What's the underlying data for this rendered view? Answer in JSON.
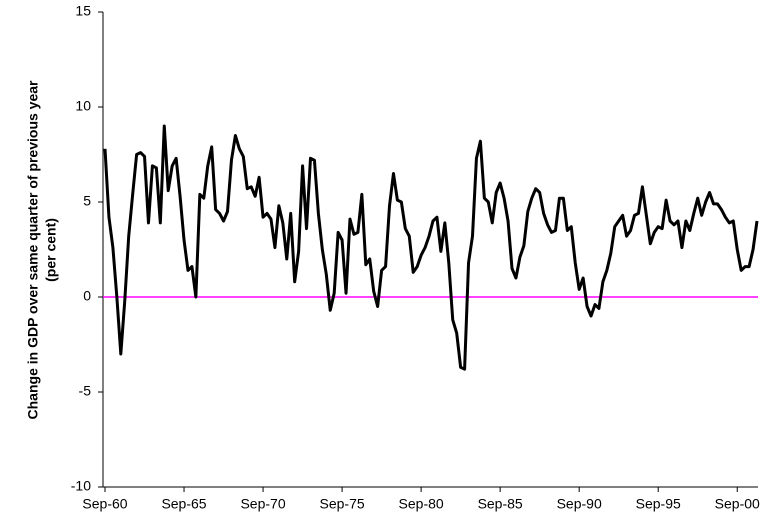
{
  "chart_data": {
    "type": "line",
    "y_label": [
      "Change in GDP over same quarter of previous year",
      "(per cent)"
    ],
    "categories": [
      "Sep-60",
      null,
      null,
      null,
      null,
      null,
      null,
      null,
      null,
      null,
      null,
      null,
      null,
      null,
      null,
      null,
      null,
      null,
      null,
      null,
      "Sep-65",
      null,
      null,
      null,
      null,
      null,
      null,
      null,
      null,
      null,
      null,
      null,
      null,
      null,
      null,
      null,
      null,
      null,
      null,
      null,
      "Sep-70",
      null,
      null,
      null,
      null,
      null,
      null,
      null,
      null,
      null,
      null,
      null,
      null,
      null,
      null,
      null,
      null,
      null,
      null,
      null,
      "Sep-75",
      null,
      null,
      null,
      null,
      null,
      null,
      null,
      null,
      null,
      null,
      null,
      null,
      null,
      null,
      null,
      null,
      null,
      null,
      null,
      "Sep-80",
      null,
      null,
      null,
      null,
      null,
      null,
      null,
      null,
      null,
      null,
      null,
      null,
      null,
      null,
      null,
      null,
      null,
      null,
      null,
      "Sep-85",
      null,
      null,
      null,
      null,
      null,
      null,
      null,
      null,
      null,
      null,
      null,
      null,
      null,
      null,
      null,
      null,
      null,
      null,
      null,
      "Sep-90",
      null,
      null,
      null,
      null,
      null,
      null,
      null,
      null,
      null,
      null,
      null,
      null,
      null,
      null,
      null,
      null,
      null,
      null,
      null,
      "Sep-95",
      null,
      null,
      null,
      null,
      null,
      null,
      null,
      null,
      null,
      null,
      null,
      null,
      null,
      null,
      null,
      null,
      null,
      null,
      null,
      "Sep-00",
      null,
      null,
      null,
      null,
      null
    ],
    "series": [
      {
        "color": "#000000",
        "values": [
          7.8,
          4.2,
          2.6,
          0.0,
          -3.0,
          -0.2,
          3.2,
          5.4,
          7.5,
          7.6,
          7.4,
          3.9,
          6.9,
          6.8,
          3.9,
          9.0,
          5.6,
          6.9,
          7.3,
          5.3,
          3.0,
          1.4,
          1.6,
          0.0,
          5.4,
          5.2,
          6.9,
          7.9,
          4.6,
          4.4,
          4.0,
          4.5,
          7.2,
          8.5,
          7.8,
          7.4,
          5.7,
          5.8,
          5.3,
          6.3,
          4.2,
          4.4,
          4.1,
          2.6,
          4.8,
          3.9,
          2.0,
          4.4,
          0.8,
          2.4,
          6.9,
          3.6,
          7.3,
          7.2,
          4.4,
          2.5,
          1.2,
          -0.7,
          0.2,
          3.4,
          3.0,
          0.2,
          4.1,
          3.3,
          3.4,
          5.4,
          1.7,
          2.0,
          0.3,
          -0.5,
          1.4,
          1.6,
          4.8,
          6.5,
          5.1,
          5.0,
          3.6,
          3.2,
          1.3,
          1.6,
          2.2,
          2.6,
          3.2,
          4.0,
          4.2,
          2.4,
          3.9,
          1.8,
          -1.2,
          -1.9,
          -3.7,
          -3.8,
          1.8,
          3.2,
          7.3,
          8.2,
          5.2,
          5.0,
          3.9,
          5.5,
          6.0,
          5.2,
          4.0,
          1.5,
          1.0,
          2.1,
          2.7,
          4.5,
          5.2,
          5.7,
          5.5,
          4.4,
          3.8,
          3.4,
          3.5,
          5.2,
          5.2,
          3.5,
          3.7,
          1.8,
          0.4,
          1.0,
          -0.5,
          -1.0,
          -0.4,
          -0.6,
          0.8,
          1.4,
          2.3,
          3.7,
          4.0,
          4.3,
          3.2,
          3.5,
          4.3,
          4.4,
          5.8,
          4.3,
          2.8,
          3.4,
          3.7,
          3.6,
          5.1,
          4.0,
          3.8,
          4.0,
          2.6,
          4.0,
          3.5,
          4.4,
          5.2,
          4.3,
          5.0,
          5.5,
          4.9,
          4.9,
          4.6,
          4.2,
          3.9,
          4.0,
          2.5,
          1.4,
          1.6,
          1.6,
          2.5,
          4.0
        ]
      }
    ],
    "zero_line_color": "#ff00ff",
    "ylim": [
      -10,
      15
    ],
    "yticks": [
      -10,
      -5,
      0,
      5,
      10,
      15
    ],
    "grid": false
  }
}
